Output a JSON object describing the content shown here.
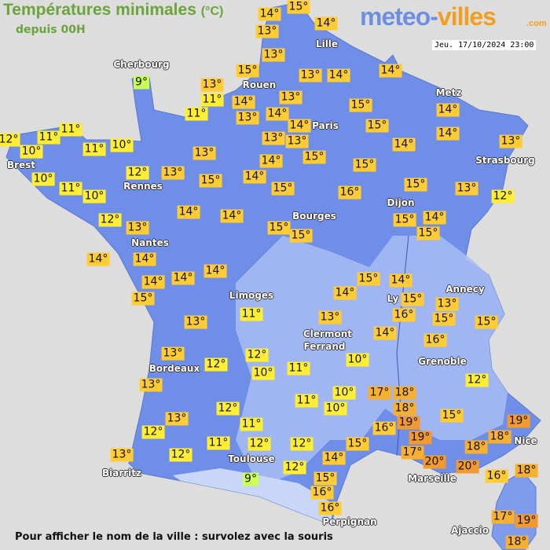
{
  "header": {
    "title": "Températures minimales",
    "unit": "(°C)",
    "subtitle": "depuis 00H",
    "logo_part1": "meteo-",
    "logo_part2": "villes",
    "logo_suffix": ".com",
    "datetime": "Jeu. 17/10/2024 23:00"
  },
  "footer": {
    "hint": "Pour afficher le nom de la ville : survolez avec la souris"
  },
  "colors": {
    "land": "#6f8ee8",
    "highland": "#a9bdf3",
    "sea": "#dddddd",
    "temp_9": "#ccff55",
    "temp_10_12": "#ffee33",
    "temp_13_16": "#ffcc33",
    "temp_17_18": "#f7b030",
    "temp_19_20": "#f29a30",
    "title": "#6aa43a"
  },
  "cities": [
    "Cherbourg",
    "Lille",
    "Rouen",
    "Paris",
    "Metz",
    "Strasbourg",
    "Brest",
    "Rennes",
    "Dijon",
    "Bourges",
    "Nantes",
    "Annecy",
    "Limoges",
    "Ly",
    "Clermont",
    "Ferrand",
    "Grenoble",
    "Bordeaux",
    "Nice",
    "Toulouse",
    "Marseille",
    "Biarritz",
    "Perpignan",
    "Ajaccio"
  ],
  "temperatures": [
    "14°",
    "15°",
    "13°",
    "14°",
    "13°",
    "15°",
    "13°",
    "14°",
    "14°",
    "9°",
    "13°",
    "11°",
    "14°",
    "13°",
    "11°",
    "13°",
    "14°",
    "14°",
    "15°",
    "15°",
    "14°",
    "14°",
    "11°",
    "12°",
    "11°",
    "10°",
    "11°",
    "10°",
    "13°",
    "13°",
    "15°",
    "14°",
    "13°",
    "13°",
    "14°",
    "15°",
    "10°",
    "12°",
    "13°",
    "15°",
    "14°",
    "11°",
    "10°",
    "15°",
    "16°",
    "15°",
    "13°",
    "12°",
    "14°",
    "14°",
    "12°",
    "13°",
    "15°",
    "15°",
    "15°",
    "14°",
    "15°",
    "14°",
    "14°",
    "14°",
    "14°",
    "14°",
    "15°",
    "15°",
    "14°",
    "14°",
    "15°",
    "13°",
    "16°",
    "15°",
    "15°",
    "11°",
    "13°",
    "13°",
    "14°",
    "16°",
    "13°",
    "12°",
    "12°",
    "10°",
    "11°",
    "10°",
    "12°",
    "13°",
    "10°",
    "11°",
    "10°",
    "17°",
    "18°",
    "18°",
    "12°",
    "13°",
    "11°",
    "15°",
    "16°",
    "19°",
    "19°",
    "12°",
    "11°",
    "12°",
    "12°",
    "15°",
    "19°",
    "18°",
    "18°",
    "17°",
    "13°",
    "12°",
    "14°",
    "20°",
    "20°",
    "9°",
    "12°",
    "16°",
    "18°",
    "15°",
    "16°",
    "16°",
    "17°",
    "19°",
    "18°"
  ]
}
